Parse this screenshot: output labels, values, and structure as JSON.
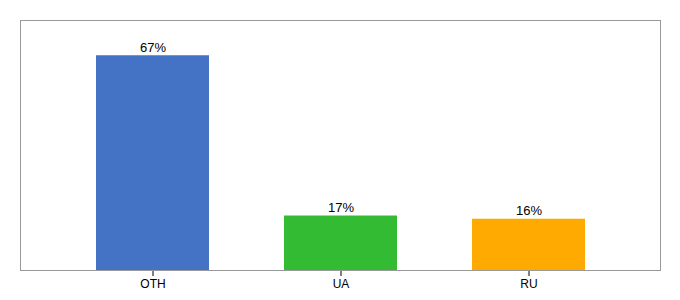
{
  "chart_data": {
    "type": "bar",
    "categories": [
      "OTH",
      "UA",
      "RU"
    ],
    "values": [
      67,
      17,
      16
    ],
    "value_labels": [
      "67%",
      "17%",
      "16%"
    ],
    "colors": [
      "#4472c4",
      "#33bb33",
      "#ffaa00"
    ],
    "ylim": [
      0,
      78
    ],
    "data_labels": true,
    "tick_labels": "x",
    "grid": false
  }
}
